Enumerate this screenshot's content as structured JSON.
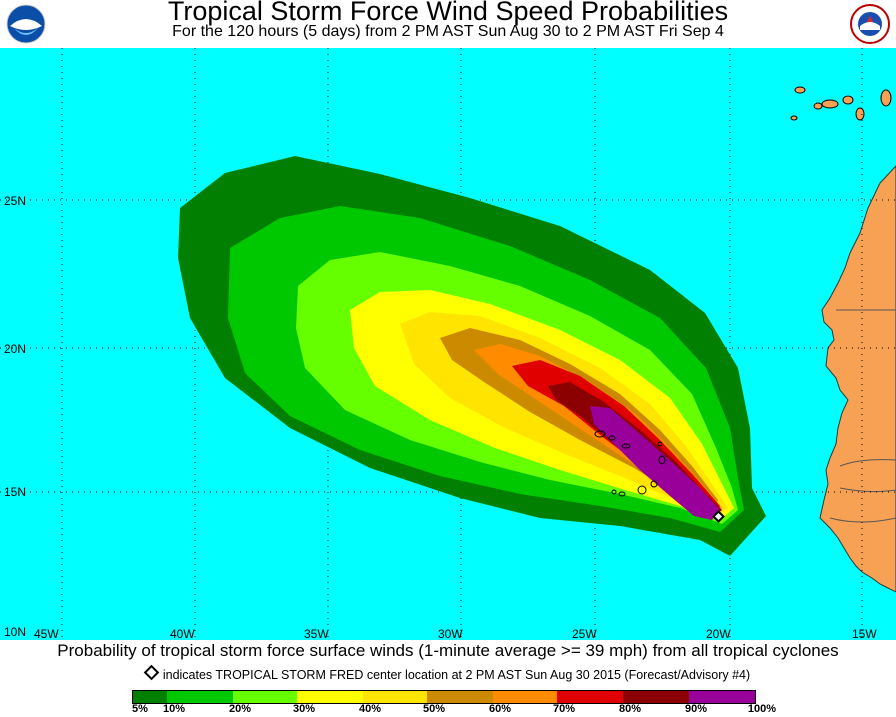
{
  "header": {
    "title": "Tropical Storm Force Wind Speed Probabilities",
    "subtitle": "For the 120 hours (5 days) from 2 PM AST Sun Aug 30 to 2 PM AST Fri Sep 4",
    "left_logo": "NOAA",
    "right_logo": "National Weather Service"
  },
  "map": {
    "latitude_labels": [
      "25N",
      "20N",
      "15N",
      "10N"
    ],
    "longitude_labels": [
      "45W",
      "40W",
      "35W",
      "30W",
      "25W",
      "20W",
      "15W"
    ],
    "colors": {
      "ocean": "#00FFFF",
      "land": "#F7A155",
      "p5": "#007F00",
      "p10": "#00C800",
      "p20": "#66FF00",
      "p30": "#FFFF00",
      "p40": "#FFE400",
      "p50": "#CC8A00",
      "p60": "#FF8C00",
      "p70": "#E00000",
      "p80": "#8B0000",
      "p90": "#990099"
    },
    "storm_marker": "storm-center-diamond"
  },
  "footer": {
    "caption": "Probability of tropical storm force surface winds (1-minute average >= 39 mph) from all tropical cyclones",
    "note": "indicates TROPICAL STORM FRED center location at 2 PM AST Sun Aug 30 2015 (Forecast/Advisory #4)"
  },
  "legend": {
    "colors": [
      "#007F00",
      "#00C800",
      "#66FF00",
      "#FFFF00",
      "#FFE400",
      "#CC8A00",
      "#FF8C00",
      "#E00000",
      "#8B0000",
      "#990099"
    ],
    "labels": [
      "5%",
      "10%",
      "20%",
      "30%",
      "40%",
      "50%",
      "60%",
      "70%",
      "80%",
      "90%",
      "100%"
    ]
  }
}
